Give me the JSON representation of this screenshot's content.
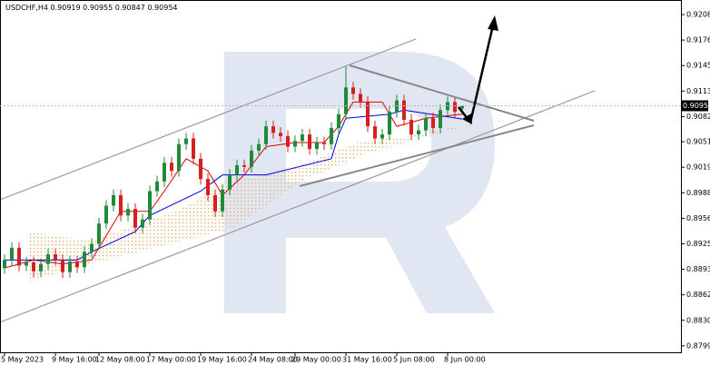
{
  "chart_data": {
    "type": "candlestick",
    "symbol": "USDCHF,H4",
    "categories": [
      "5 May 2023",
      null,
      null,
      null,
      null,
      null,
      null,
      "9 May 16:00",
      null,
      null,
      null,
      null,
      null,
      "12 May 08:00",
      null,
      null,
      null,
      null,
      null,
      null,
      "17 May 00:00",
      null,
      null,
      null,
      null,
      null,
      null,
      "19 May 16:00",
      null,
      null,
      null,
      null,
      null,
      null,
      "24 May 08:00",
      null,
      null,
      null,
      null,
      null,
      "29 May 00:00",
      null,
      null,
      null,
      null,
      null,
      null,
      "31 May 16:00",
      null,
      null,
      null,
      null,
      null,
      null,
      "5 Jun 08:00",
      null,
      null,
      null,
      null,
      null,
      null,
      "8 Jun 00:00",
      null,
      null
    ],
    "open": [
      0.8895,
      0.8905,
      0.892,
      0.8898,
      0.8902,
      0.8891,
      0.89,
      0.8912,
      0.8905,
      0.889,
      0.8903,
      0.8896,
      0.8915,
      0.8925,
      0.895,
      0.8972,
      0.8985,
      0.896,
      0.8968,
      0.8945,
      0.8955,
      0.899,
      0.9002,
      0.9025,
      0.9015,
      0.9048,
      0.9055,
      0.903,
      0.9005,
      0.8985,
      0.8965,
      0.8992,
      0.901,
      0.9022,
      0.902,
      0.904,
      0.9048,
      0.907,
      0.9062,
      0.9058,
      0.9045,
      0.9052,
      0.906,
      0.9042,
      0.905,
      0.9048,
      0.9068,
      0.9085,
      0.9118,
      0.911,
      0.91,
      0.907,
      0.9055,
      0.906,
      0.9088,
      0.9102,
      0.9078,
      0.906,
      0.9065,
      0.908,
      0.9068,
      0.909,
      0.91,
      0.90919
    ],
    "high": [
      0.8912,
      0.8927,
      0.8927,
      0.8909,
      0.8909,
      0.8907,
      0.8919,
      0.8919,
      0.8912,
      0.891,
      0.891,
      0.8922,
      0.8932,
      0.8957,
      0.8979,
      0.8992,
      0.8992,
      0.8975,
      0.8975,
      0.8962,
      0.8997,
      0.9009,
      0.9032,
      0.9032,
      0.9055,
      0.9062,
      0.9062,
      0.9037,
      0.9012,
      0.8992,
      0.8999,
      0.9017,
      0.9029,
      0.9029,
      0.9047,
      0.9055,
      0.9077,
      0.9077,
      0.9069,
      0.9065,
      0.9059,
      0.9067,
      0.9067,
      0.9057,
      0.9057,
      0.9075,
      0.9092,
      0.9145,
      0.9125,
      0.9117,
      0.9107,
      0.9077,
      0.9067,
      0.9095,
      0.9109,
      0.9109,
      0.9085,
      0.9072,
      0.9087,
      0.9087,
      0.9097,
      0.9107,
      0.9107,
      0.90955
    ],
    "low": [
      0.8888,
      0.8898,
      0.8891,
      0.8891,
      0.8884,
      0.8884,
      0.8893,
      0.8898,
      0.8883,
      0.8883,
      0.8889,
      0.8889,
      0.8908,
      0.8918,
      0.8943,
      0.8965,
      0.8953,
      0.8953,
      0.8938,
      0.8938,
      0.8948,
      0.8983,
      0.8995,
      0.9008,
      0.9008,
      0.9041,
      0.9023,
      0.8998,
      0.8978,
      0.8958,
      0.8958,
      0.8985,
      0.9003,
      0.9013,
      0.9013,
      0.9033,
      0.9041,
      0.9055,
      0.9051,
      0.9038,
      0.9038,
      0.9045,
      0.9035,
      0.9035,
      0.9041,
      0.9041,
      0.9061,
      0.9078,
      0.9103,
      0.9093,
      0.9063,
      0.9048,
      0.9048,
      0.9053,
      0.9081,
      0.9071,
      0.9053,
      0.9053,
      0.9058,
      0.9061,
      0.9061,
      0.9083,
      0.9081,
      0.90847
    ],
    "close": [
      0.8905,
      0.892,
      0.8898,
      0.8902,
      0.8891,
      0.89,
      0.8912,
      0.8905,
      0.889,
      0.8903,
      0.8896,
      0.8915,
      0.8925,
      0.895,
      0.8972,
      0.8985,
      0.896,
      0.8968,
      0.8945,
      0.8955,
      0.899,
      0.9002,
      0.9025,
      0.9015,
      0.9048,
      0.9055,
      0.903,
      0.9005,
      0.8985,
      0.8965,
      0.8992,
      0.901,
      0.9022,
      0.902,
      0.904,
      0.9048,
      0.907,
      0.9062,
      0.9058,
      0.9045,
      0.9052,
      0.906,
      0.9042,
      0.905,
      0.9048,
      0.9068,
      0.9085,
      0.9118,
      0.911,
      0.91,
      0.907,
      0.9055,
      0.906,
      0.9088,
      0.9102,
      0.9078,
      0.906,
      0.9065,
      0.908,
      0.9068,
      0.909,
      0.91,
      0.9088,
      0.90954
    ],
    "up_color": "#1f8a3a",
    "down_color": "#d61f1f",
    "lines": [
      {
        "color": "#e00000",
        "x": [
          0,
          4,
          8,
          12,
          14,
          16,
          20,
          22,
          25,
          28,
          30,
          33,
          36,
          40,
          44,
          46,
          48,
          52,
          54,
          58,
          63
        ],
        "values": [
          0.8895,
          0.8905,
          0.89,
          0.8905,
          0.8935,
          0.8965,
          0.8965,
          0.899,
          0.903,
          0.9015,
          0.8985,
          0.901,
          0.9045,
          0.905,
          0.905,
          0.907,
          0.91,
          0.91,
          0.907,
          0.908,
          0.9085
        ]
      },
      {
        "color": "#0000e0",
        "x": [
          0,
          10,
          12,
          18,
          20,
          27,
          30,
          36,
          45,
          46,
          47,
          53,
          55,
          63
        ],
        "values": [
          0.8905,
          0.8905,
          0.8915,
          0.894,
          0.896,
          0.899,
          0.901,
          0.901,
          0.903,
          0.906,
          0.908,
          0.9085,
          0.909,
          0.9079
        ]
      }
    ],
    "ylim": [
      0.8791,
      0.9226
    ],
    "yticks": [
      {
        "value": 0.9208,
        "label": "0.92080"
      },
      0.91765,
      {
        "value": 0.9145,
        "label": "0.91450"
      },
      0.91135,
      {
        "value": 0.9082,
        "label": "0.90820"
      },
      {
        "value": 0.9051,
        "label": "0.90510"
      },
      0.90195,
      {
        "value": 0.8988,
        "label": "0.89880"
      },
      0.89565,
      {
        "value": 0.8925,
        "label": "0.89250"
      },
      0.88935,
      {
        "value": 0.8862,
        "label": "0.88620"
      },
      0.88305,
      {
        "value": 0.8799,
        "label": "0.87990"
      }
    ]
  }
}
